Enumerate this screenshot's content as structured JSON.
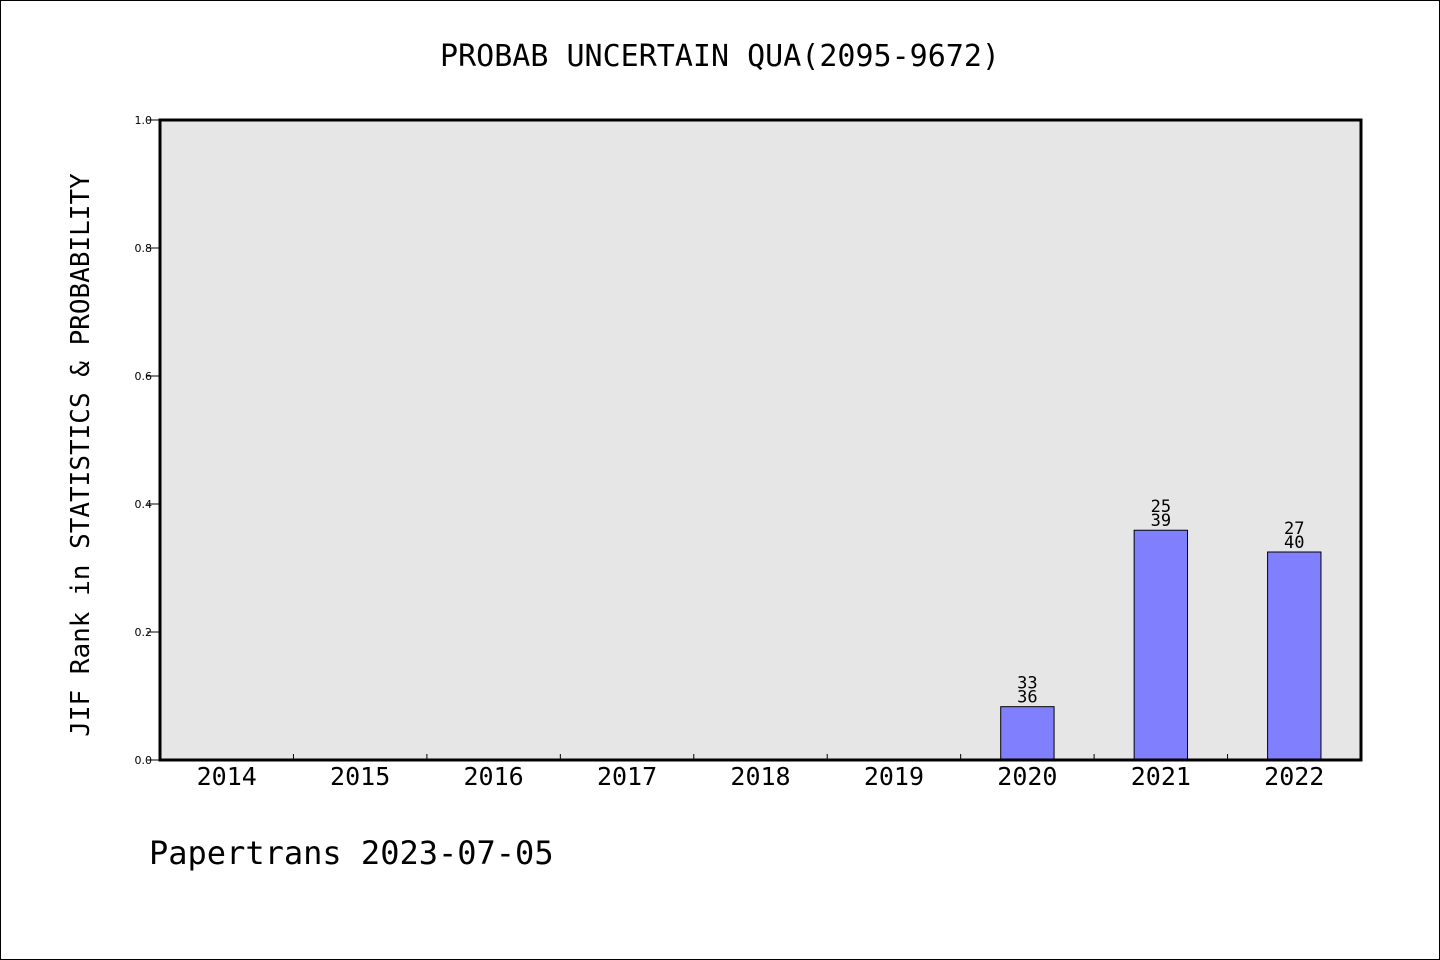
{
  "chart_data": {
    "type": "bar",
    "title": "PROBAB UNCERTAIN QUA(2095-9672)",
    "ylabel": "JIF Rank in STATISTICS & PROBABILITY",
    "xlabel": "",
    "categories": [
      "2014",
      "2015",
      "2016",
      "2017",
      "2018",
      "2019",
      "2020",
      "2021",
      "2022"
    ],
    "values": [
      null,
      null,
      null,
      null,
      null,
      null,
      0.0833,
      0.359,
      0.325
    ],
    "bar_labels": [
      null,
      null,
      null,
      null,
      null,
      null,
      {
        "top": "33",
        "bottom": "36"
      },
      {
        "top": "25",
        "bottom": "39"
      },
      {
        "top": "27",
        "bottom": "40"
      }
    ],
    "ylim": [
      0,
      1.0
    ],
    "yticks": [
      "0.0",
      "0.2",
      "0.4",
      "0.6",
      "0.8",
      "1.0"
    ],
    "grid": false,
    "bar_color": "#8080ff",
    "plot_background": "#e6e6e6"
  },
  "footer": {
    "credit": "Papertrans 2023-07-05"
  }
}
